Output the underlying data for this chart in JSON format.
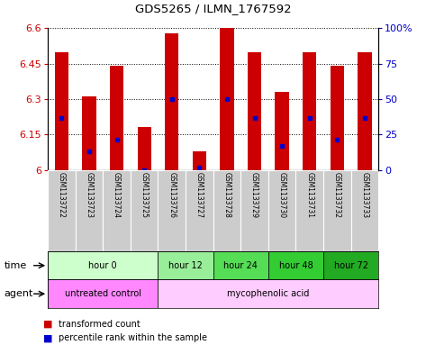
{
  "title": "GDS5265 / ILMN_1767592",
  "samples": [
    "GSM1133722",
    "GSM1133723",
    "GSM1133724",
    "GSM1133725",
    "GSM1133726",
    "GSM1133727",
    "GSM1133728",
    "GSM1133729",
    "GSM1133730",
    "GSM1133731",
    "GSM1133732",
    "GSM1133733"
  ],
  "bar_values": [
    6.5,
    6.31,
    6.44,
    6.18,
    6.58,
    6.08,
    6.6,
    6.5,
    6.33,
    6.5,
    6.44,
    6.5
  ],
  "percentile_values": [
    6.22,
    6.08,
    6.13,
    6.0,
    6.3,
    6.01,
    6.3,
    6.22,
    6.1,
    6.22,
    6.13,
    6.22
  ],
  "y_min": 6.0,
  "y_max": 6.6,
  "y_ticks": [
    6.0,
    6.15,
    6.3,
    6.45,
    6.6
  ],
  "y_tick_labels": [
    "6",
    "6.15",
    "6.3",
    "6.45",
    "6.6"
  ],
  "right_y_ticks": [
    0.0,
    0.25,
    0.5,
    0.75,
    1.0
  ],
  "right_y_labels": [
    "0",
    "25",
    "50",
    "75",
    "100%"
  ],
  "bar_color": "#cc0000",
  "percentile_color": "#0000cc",
  "time_groups": [
    {
      "label": "hour 0",
      "start": 0,
      "end": 4,
      "color": "#ccffcc"
    },
    {
      "label": "hour 12",
      "start": 4,
      "end": 6,
      "color": "#99ee99"
    },
    {
      "label": "hour 24",
      "start": 6,
      "end": 8,
      "color": "#55dd55"
    },
    {
      "label": "hour 48",
      "start": 8,
      "end": 10,
      "color": "#33cc33"
    },
    {
      "label": "hour 72",
      "start": 10,
      "end": 12,
      "color": "#22aa22"
    }
  ],
  "agent_groups": [
    {
      "label": "untreated control",
      "start": 0,
      "end": 4,
      "color": "#ff88ff"
    },
    {
      "label": "mycophenolic acid",
      "start": 4,
      "end": 12,
      "color": "#ffccff"
    }
  ],
  "legend_items": [
    {
      "label": "transformed count",
      "color": "#cc0000"
    },
    {
      "label": "percentile rank within the sample",
      "color": "#0000cc"
    }
  ],
  "sample_bg_color": "#cccccc",
  "axis_label_color": "#cc0000",
  "right_axis_label_color": "#0000cc",
  "grid_color": "black"
}
